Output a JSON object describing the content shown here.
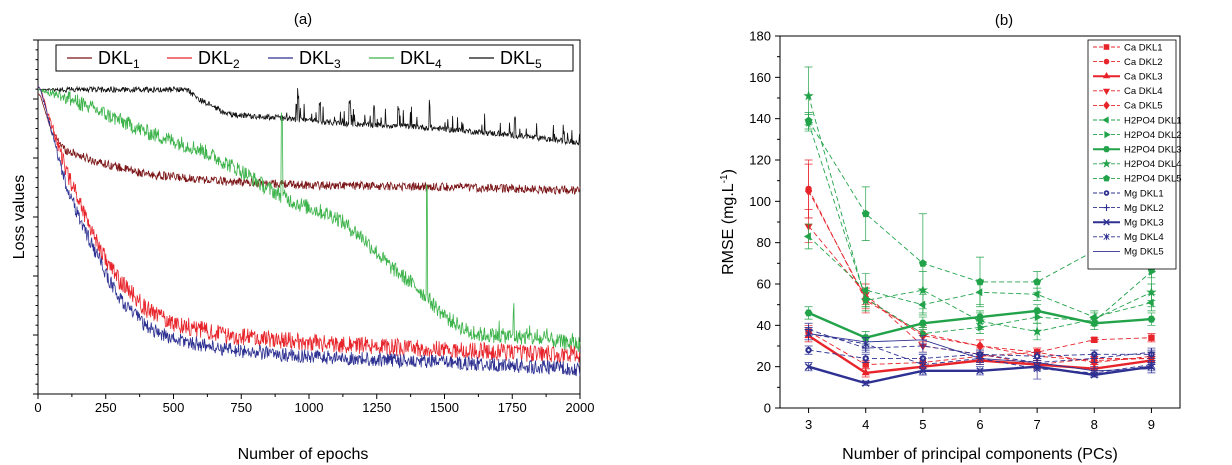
{
  "chart_data": [
    {
      "type": "line",
      "panel_label": "(a)",
      "title": "",
      "xlabel": "Number of epochs",
      "ylabel": "Loss values",
      "xlim": [
        0,
        2000
      ],
      "x_ticks": [
        0,
        250,
        500,
        750,
        1000,
        1250,
        1500,
        1750,
        2000
      ],
      "y_ticks_labeled": false,
      "grid": false,
      "legend_placement": "top",
      "series": [
        {
          "name": "DKL",
          "sub": "1",
          "color": "#7b1416",
          "keypoints": [
            [
              0,
              0.85
            ],
            [
              10,
              0.84
            ],
            [
              50,
              0.74
            ],
            [
              100,
              0.69
            ],
            [
              200,
              0.66
            ],
            [
              400,
              0.62
            ],
            [
              700,
              0.6
            ],
            [
              1000,
              0.59
            ],
            [
              1500,
              0.585
            ],
            [
              2000,
              0.575
            ]
          ],
          "noise": 0.012,
          "spikes": []
        },
        {
          "name": "DKL",
          "sub": "2",
          "color": "#e8242b",
          "keypoints": [
            [
              0,
              0.87
            ],
            [
              10,
              0.86
            ],
            [
              50,
              0.76
            ],
            [
              100,
              0.64
            ],
            [
              150,
              0.55
            ],
            [
              200,
              0.46
            ],
            [
              250,
              0.38
            ],
            [
              300,
              0.32
            ],
            [
              400,
              0.24
            ],
            [
              500,
              0.2
            ],
            [
              700,
              0.165
            ],
            [
              1000,
              0.145
            ],
            [
              1500,
              0.125
            ],
            [
              2000,
              0.11
            ]
          ],
          "noise": 0.025,
          "spikes": []
        },
        {
          "name": "DKL",
          "sub": "3",
          "color": "#2e3192",
          "keypoints": [
            [
              0,
              0.87
            ],
            [
              10,
              0.86
            ],
            [
              50,
              0.74
            ],
            [
              100,
              0.6
            ],
            [
              150,
              0.5
            ],
            [
              200,
              0.42
            ],
            [
              250,
              0.34
            ],
            [
              300,
              0.27
            ],
            [
              400,
              0.19
            ],
            [
              500,
              0.155
            ],
            [
              700,
              0.125
            ],
            [
              1000,
              0.105
            ],
            [
              1500,
              0.09
            ],
            [
              2000,
              0.07
            ]
          ],
          "noise": 0.02,
          "spikes": []
        },
        {
          "name": "DKL",
          "sub": "4",
          "color": "#3cb34a",
          "keypoints": [
            [
              0,
              0.86
            ],
            [
              100,
              0.84
            ],
            [
              250,
              0.79
            ],
            [
              400,
              0.74
            ],
            [
              600,
              0.69
            ],
            [
              750,
              0.63
            ],
            [
              850,
              0.58
            ],
            [
              950,
              0.54
            ],
            [
              1100,
              0.5
            ],
            [
              1200,
              0.44
            ],
            [
              1300,
              0.36
            ],
            [
              1400,
              0.3
            ],
            [
              1500,
              0.22
            ],
            [
              1600,
              0.17
            ],
            [
              1800,
              0.16
            ],
            [
              2000,
              0.14
            ]
          ],
          "noise": 0.022,
          "spikes": [
            [
              900,
              0.22
            ],
            [
              1435,
              0.33
            ],
            [
              1755,
              0.08
            ]
          ]
        },
        {
          "name": "DKL",
          "sub": "5",
          "color": "#111111",
          "keypoints": [
            [
              0,
              0.86
            ],
            [
              550,
              0.86
            ],
            [
              600,
              0.83
            ],
            [
              700,
              0.79
            ],
            [
              900,
              0.78
            ],
            [
              1100,
              0.765
            ],
            [
              1400,
              0.755
            ],
            [
              1700,
              0.735
            ],
            [
              2000,
              0.71
            ]
          ],
          "noise": 0.008,
          "spikes": [
            [
              960,
              0.06
            ],
            [
              1040,
              0.05
            ],
            [
              1150,
              0.06
            ],
            [
              1240,
              0.05
            ],
            [
              1330,
              0.05
            ],
            [
              1445,
              0.06
            ],
            [
              1760,
              0.05
            ]
          ]
        }
      ]
    },
    {
      "type": "line",
      "panel_label": "(b)",
      "title": "",
      "xlabel": "Number of principal components (PCs)",
      "ylabel": "RMSE (mg.L",
      "ylabel_sup": "-1",
      "ylabel_end": ")",
      "x": [
        3,
        4,
        5,
        6,
        7,
        8,
        9
      ],
      "xlim": [
        2.5,
        9.5
      ],
      "ylim": [
        0,
        180
      ],
      "y_ticks": [
        0,
        20,
        40,
        60,
        80,
        100,
        120,
        140,
        160,
        180
      ],
      "grid": false,
      "legend_placement": "top-right",
      "series": [
        {
          "name": "Ca DKL1",
          "color": "#e8242b",
          "marker": "square",
          "dash": "5,3",
          "width": 0.9,
          "values": [
            37,
            21,
            22,
            25,
            27,
            33,
            34
          ],
          "err": [
            3,
            2,
            2,
            2,
            2,
            1,
            2
          ]
        },
        {
          "name": "Ca DKL2",
          "color": "#e8242b",
          "marker": "circle",
          "dash": "5,3",
          "width": 0.9,
          "values": [
            106,
            52,
            36,
            30,
            27,
            22,
            25
          ],
          "err": [
            14,
            6,
            4,
            3,
            2,
            2,
            2
          ]
        },
        {
          "name": "Ca DKL3",
          "color": "#e8242b",
          "marker": "triangle-up",
          "dash": "",
          "width": 2.4,
          "values": [
            35,
            17,
            20,
            23,
            21,
            19,
            23
          ],
          "err": [
            3,
            2,
            2,
            2,
            2,
            2,
            2
          ]
        },
        {
          "name": "Ca DKL4",
          "color": "#e8242b",
          "marker": "triangle-down",
          "dash": "5,3",
          "width": 0.9,
          "values": [
            88,
            55,
            30,
            26,
            21,
            24,
            24
          ],
          "err": [
            8,
            5,
            3,
            3,
            2,
            2,
            2
          ]
        },
        {
          "name": "Ca DKL5",
          "color": "#e8242b",
          "marker": "diamond",
          "dash": "5,3",
          "width": 0.9,
          "values": [
            105,
            53,
            35,
            30,
            25,
            23,
            24
          ],
          "err": [
            13,
            5,
            4,
            3,
            2,
            2,
            2
          ]
        },
        {
          "name": "H2PO4 DKL1",
          "color": "#22a34a",
          "marker": "triangle-left",
          "dash": "5,3",
          "width": 0.9,
          "values": [
            83,
            57,
            50,
            56,
            55,
            44,
            51
          ],
          "err": [
            6,
            8,
            5,
            6,
            3,
            3,
            4
          ]
        },
        {
          "name": "H2PO4 DKL2",
          "color": "#22a34a",
          "marker": "triangle-right",
          "dash": "5,3",
          "width": 0.9,
          "values": [
            138,
            53,
            36,
            39,
            44,
            42,
            66
          ],
          "err": [
            4,
            4,
            3,
            3,
            3,
            2,
            3
          ]
        },
        {
          "name": "H2PO4 DKL3",
          "color": "#22a34a",
          "marker": "hexagon",
          "dash": "",
          "width": 2.4,
          "values": [
            46,
            34,
            41,
            44,
            47,
            41,
            43
          ],
          "err": [
            3,
            3,
            3,
            3,
            3,
            3,
            3
          ]
        },
        {
          "name": "H2PO4 DKL4",
          "color": "#22a34a",
          "marker": "star",
          "dash": "5,3",
          "width": 0.9,
          "values": [
            151,
            52,
            57,
            42,
            37,
            43,
            56
          ],
          "err": [
            14,
            5,
            9,
            4,
            4,
            3,
            4
          ]
        },
        {
          "name": "H2PO4 DKL5",
          "color": "#22a34a",
          "marker": "pentagon",
          "dash": "5,3",
          "width": 0.9,
          "values": [
            139,
            94,
            70,
            61,
            61,
            76,
            67
          ],
          "err": [
            4,
            13,
            24,
            12,
            5,
            5,
            18
          ]
        },
        {
          "name": "Mg DKL1",
          "color": "#2e3192",
          "marker": "circle-dot",
          "dash": "5,3",
          "width": 0.9,
          "values": [
            28,
            24,
            24,
            26,
            25,
            26,
            26
          ],
          "err": [
            2,
            2,
            2,
            2,
            2,
            2,
            2
          ]
        },
        {
          "name": "Mg DKL2",
          "color": "#2e3192",
          "marker": "plus",
          "dash": "5,3",
          "width": 0.9,
          "values": [
            38,
            29,
            30,
            26,
            22,
            24,
            27
          ],
          "err": [
            3,
            2,
            3,
            2,
            2,
            2,
            2
          ]
        },
        {
          "name": "Mg DKL3",
          "color": "#2e3192",
          "marker": "x",
          "dash": "",
          "width": 2.4,
          "values": [
            20,
            12,
            18,
            18,
            20,
            16,
            20
          ],
          "err": [
            2,
            1,
            2,
            2,
            2,
            1,
            2
          ]
        },
        {
          "name": "Mg DKL4",
          "color": "#2e3192",
          "marker": "asterisk",
          "dash": "5,3",
          "width": 0.9,
          "values": [
            36,
            31,
            21,
            24,
            19,
            17,
            21
          ],
          "err": [
            3,
            3,
            5,
            3,
            5,
            2,
            2
          ]
        },
        {
          "name": "Mg DKL5",
          "color": "#2e3192",
          "marker": "none",
          "dash": "",
          "width": 0.9,
          "values": [
            36,
            32,
            33,
            24,
            22,
            18,
            19
          ],
          "err": [
            3,
            2,
            2,
            2,
            2,
            2,
            2
          ]
        }
      ]
    }
  ]
}
